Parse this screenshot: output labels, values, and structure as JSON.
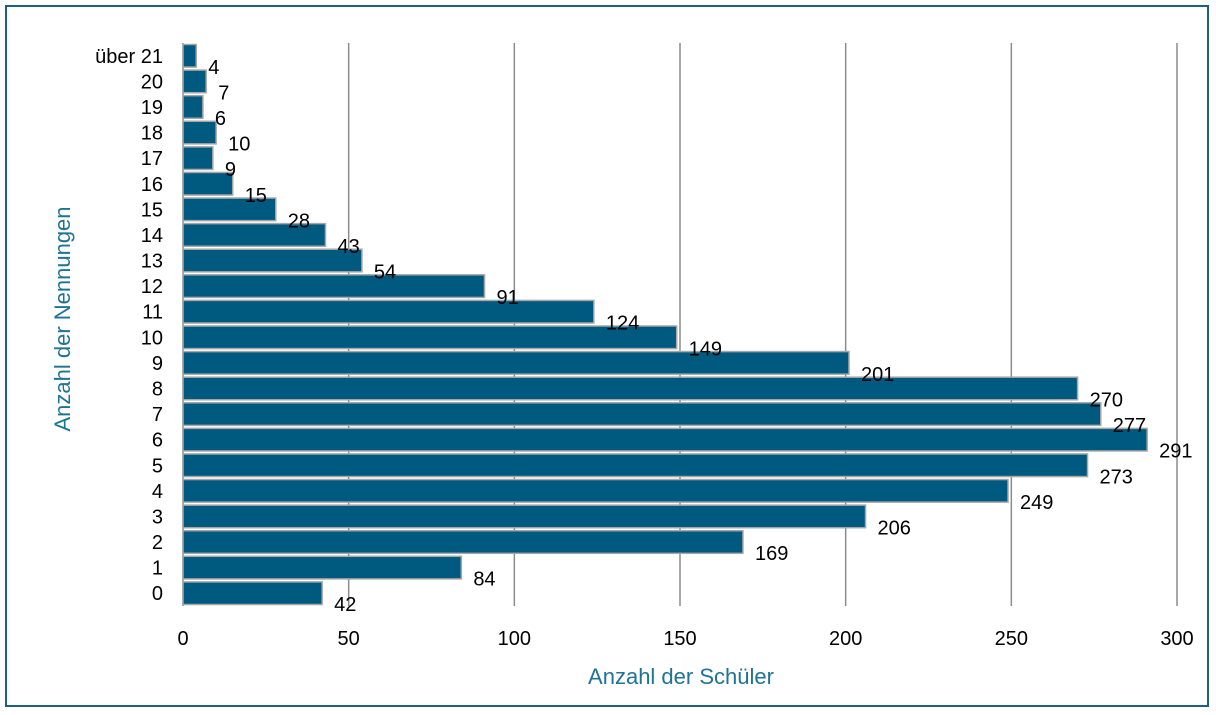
{
  "chart_data": {
    "type": "bar",
    "orientation": "horizontal",
    "categories": [
      "0",
      "1",
      "2",
      "3",
      "4",
      "5",
      "6",
      "7",
      "8",
      "9",
      "10",
      "11",
      "12",
      "13",
      "14",
      "15",
      "16",
      "17",
      "18",
      "19",
      "20",
      "über 21"
    ],
    "values": [
      42,
      84,
      169,
      206,
      249,
      273,
      291,
      277,
      270,
      201,
      149,
      124,
      91,
      54,
      43,
      28,
      15,
      9,
      10,
      6,
      7,
      4
    ],
    "xlabel": "Anzahl der Schüler",
    "ylabel": "Anzahl der Nennungen",
    "xlim": [
      0,
      300
    ],
    "xticks": [
      0,
      50,
      100,
      150,
      200,
      250,
      300
    ],
    "grid": "vertical",
    "legend": "none",
    "colors": {
      "bar": "#005a80",
      "bar_border": "#a6a6a6",
      "grid": "#8c8c8c",
      "axis_title": "#1f7394",
      "frame": "#1f5f7a"
    }
  }
}
